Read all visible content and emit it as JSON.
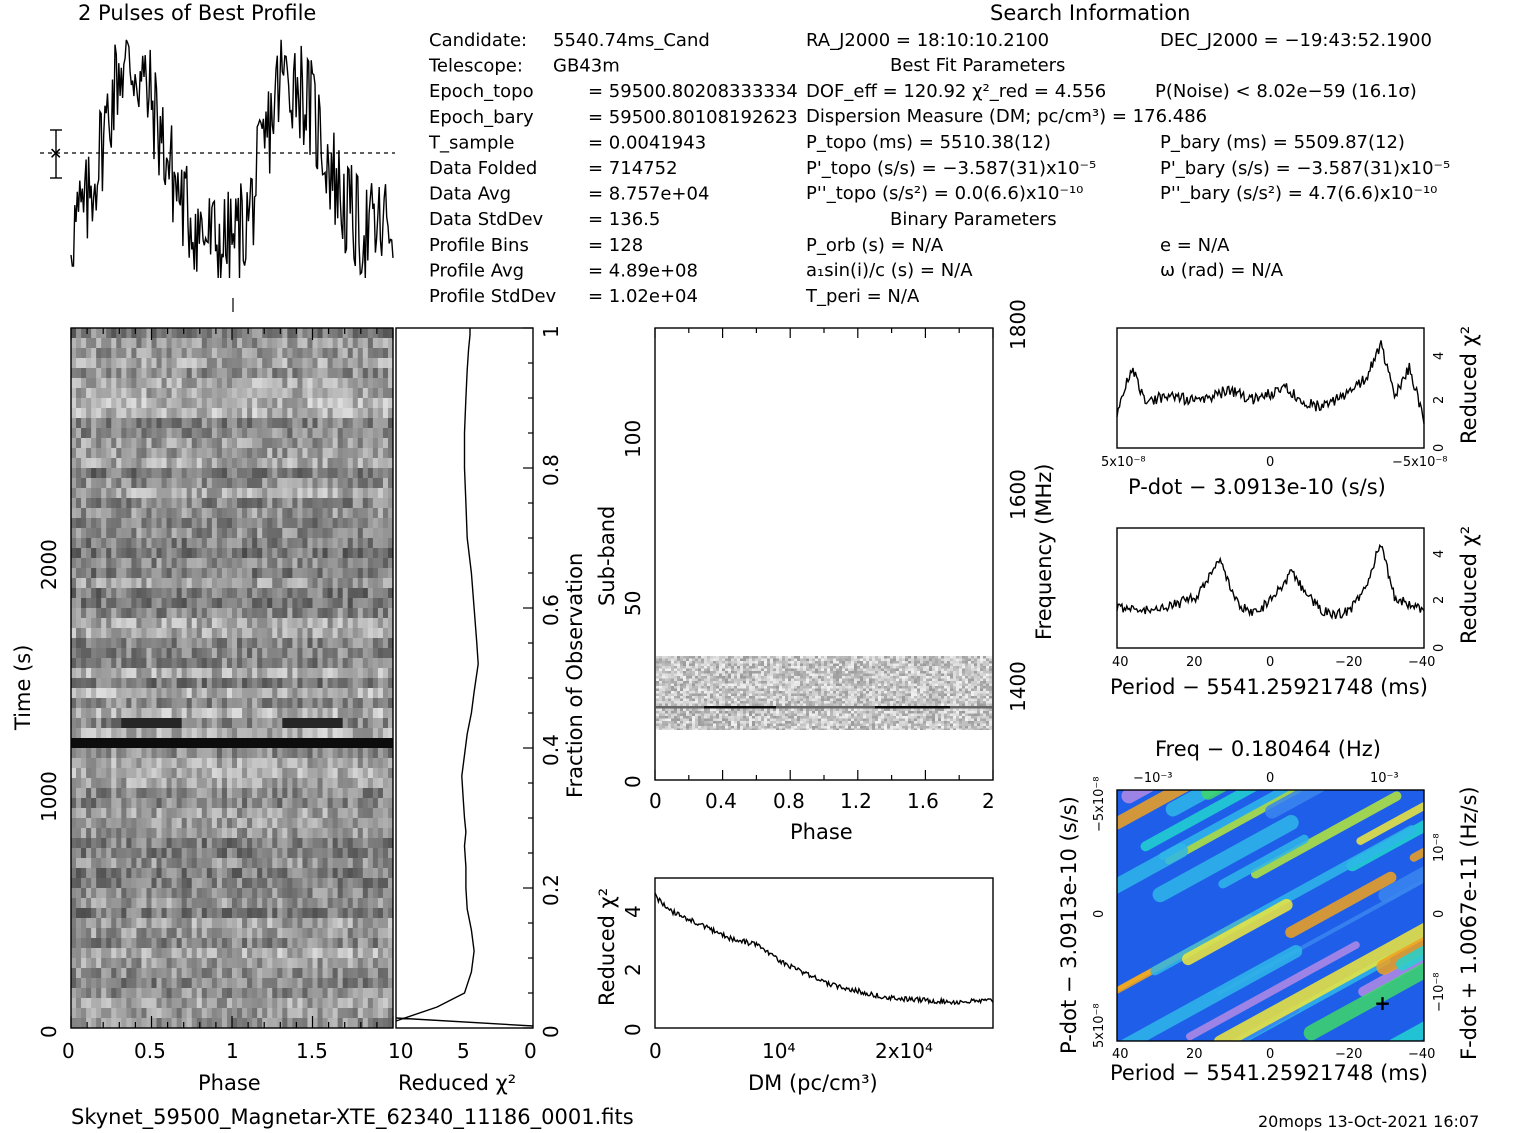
{
  "filename": "Skynet_59500_Magnetar-XTE_62340_11186_0001.fits",
  "footer_right": "20mops 13-Oct-2021 16:07",
  "profile_title": "2 Pulses of Best Profile",
  "search_title": "Search Information",
  "info_left": [
    [
      "Candidate:",
      "5540.74ms_Cand"
    ],
    [
      "Telescope:",
      "GB43m"
    ],
    [
      "Epoch_topo",
      "= 59500.80208333334"
    ],
    [
      "Epoch_bary",
      "= 59500.80108192623"
    ],
    [
      "T_sample",
      "= 0.0041943"
    ],
    [
      "Data Folded",
      "= 714752"
    ],
    [
      "Data Avg",
      "= 8.757e+04"
    ],
    [
      "Data StdDev",
      "= 136.5"
    ],
    [
      "Profile Bins",
      "= 128"
    ],
    [
      "Profile Avg",
      "= 4.89e+08"
    ],
    [
      "Profile StdDev",
      "= 1.02e+04"
    ]
  ],
  "info_mid": {
    "ra": "RA_J2000 = 18:10:10.2100",
    "best_fit_title": "Best Fit Parameters",
    "dof": "DOF_eff = 120.92  χ²_red = 4.556",
    "dm": "Dispersion Measure (DM; pc/cm³) = 176.486",
    "ptopo": "P_topo (ms) =  5510.38(12)",
    "pdtopo": "P'_topo (s/s) = −3.587(31)x10⁻⁵",
    "pddtopo": "P''_topo (s/s²) = 0.0(6.6)x10⁻¹⁰",
    "binary_title": "Binary Parameters",
    "porb": "P_orb (s) = N/A",
    "asini": "a₁sin(i)/c (s) = N/A",
    "tperi": "T_peri = N/A"
  },
  "info_right": {
    "dec": "DEC_J2000 = −19:43:52.1900",
    "pnoise": "P(Noise) < 8.02e−59  (16.1σ)",
    "pbary": "P_bary (ms) =  5509.87(12)",
    "pdbary": "P'_bary (s/s) = −3.587(31)x10⁻⁵",
    "pddbary": "P''_bary (s/s²) =  4.7(6.6)x10⁻¹⁰",
    "ecc": "e = N/A",
    "omega": "ω (rad) = N/A"
  },
  "chart_data": [
    {
      "type": "line",
      "name": "profile",
      "title": "2 Pulses of Best Profile",
      "x": [
        0,
        0.1,
        0.2,
        0.3,
        0.4,
        0.5,
        0.6,
        0.7,
        0.8,
        0.9,
        1.0,
        1.1,
        1.2,
        1.3,
        1.4,
        1.5,
        1.6,
        1.7,
        1.8,
        1.9,
        2.0
      ],
      "y": [
        0.2,
        0.3,
        0.6,
        0.9,
        0.9,
        0.75,
        0.5,
        0.3,
        0.2,
        0.15,
        0.15,
        0.25,
        0.55,
        0.85,
        0.85,
        0.7,
        0.5,
        0.3,
        0.2,
        0.2,
        0.25
      ]
    },
    {
      "type": "heatmap",
      "name": "time-phase",
      "xlabel": "Phase",
      "ylabel": "Time (s)",
      "xticks": [
        "0",
        "0.5",
        "1",
        "1.5"
      ],
      "yticks": [
        "0",
        "1000",
        "2000"
      ],
      "xlim": [
        0,
        2
      ],
      "ylim": [
        0,
        3000
      ],
      "bright_row_times": [
        1200,
        1300
      ]
    },
    {
      "type": "line",
      "name": "time-chi2",
      "xlabel": "Reduced χ²",
      "ylabel": "Fraction of Observation",
      "xticks": [
        "10",
        "5",
        "0"
      ],
      "yticks": [
        "0",
        "0.2",
        "0.4",
        "0.6",
        "0.8",
        "1"
      ],
      "xlim": [
        10,
        0
      ],
      "ylim": [
        0,
        1
      ],
      "x": [
        10,
        7,
        5,
        4.5,
        4.3,
        4.5,
        4.8,
        4.9,
        4.9,
        5.0,
        4.9,
        5.0,
        5.1,
        5.2,
        5.0,
        4.8,
        4.5,
        4.3,
        4.0,
        4.1,
        4.3,
        4.5,
        4.8,
        4.9,
        5.0,
        5.0,
        4.9,
        4.8,
        4.7,
        4.6,
        4.6
      ],
      "y": [
        0.01,
        0.03,
        0.05,
        0.08,
        0.11,
        0.14,
        0.17,
        0.2,
        0.23,
        0.26,
        0.28,
        0.3,
        0.33,
        0.36,
        0.39,
        0.42,
        0.45,
        0.48,
        0.52,
        0.55,
        0.6,
        0.65,
        0.7,
        0.75,
        0.8,
        0.85,
        0.9,
        0.94,
        0.97,
        0.99,
        1.0
      ]
    },
    {
      "type": "heatmap",
      "name": "phase-subband",
      "xlabel": "Phase",
      "ylabel": "Sub-band",
      "y2label": "Frequency (MHz)",
      "xticks": [
        "0",
        "0.4",
        "0.8",
        "1.2",
        "1.6",
        "2"
      ],
      "yticks": [
        "0",
        "50",
        "100"
      ],
      "y2ticks": [
        "1400",
        "1600",
        "1800"
      ],
      "xlim": [
        0,
        2
      ],
      "ylim": [
        0,
        128
      ],
      "data_band": [
        15,
        35
      ]
    },
    {
      "type": "line",
      "name": "dm-chi2",
      "xlabel": "DM (pc/cm³)",
      "ylabel": "Reduced χ²",
      "xticks": [
        "0",
        "10⁴",
        "2x10⁴"
      ],
      "yticks": [
        "0",
        "2",
        "4"
      ],
      "xlim": [
        0,
        27000
      ],
      "ylim": [
        0,
        5.2
      ],
      "x": [
        0,
        1000,
        2000,
        4000,
        6000,
        8000,
        10000,
        12000,
        14000,
        16000,
        18000,
        20000,
        22000,
        24000,
        27000
      ],
      "y": [
        4.6,
        4.1,
        3.9,
        3.5,
        3.1,
        2.9,
        2.3,
        1.9,
        1.5,
        1.3,
        1.1,
        1.0,
        0.95,
        0.9,
        0.95
      ]
    },
    {
      "type": "line",
      "name": "pdot-chi2",
      "xlabel": "P-dot − 3.0913e-10 (s/s)",
      "ylabel": "Reduced χ²",
      "xticks": [
        "5x10⁻⁸",
        "0",
        "−5x10⁻⁸"
      ],
      "yticks": [
        "0",
        "2",
        "4"
      ],
      "xlim": [
        5.3e-08,
        -5.3e-08
      ],
      "ylim": [
        0,
        5.2
      ],
      "x": [
        5.3e-08,
        4.8e-08,
        4.3e-08,
        3.5e-08,
        2.5e-08,
        1.5e-08,
        5e-09,
        -5e-09,
        -1.5e-08,
        -2.5e-08,
        -3.3e-08,
        -3.8e-08,
        -4.3e-08,
        -4.8e-08,
        -5.3e-08
      ],
      "y": [
        1.5,
        3.5,
        2.0,
        2.3,
        2.0,
        2.5,
        2.1,
        2.6,
        1.8,
        2.2,
        3.0,
        4.5,
        2.2,
        3.5,
        1.2
      ]
    },
    {
      "type": "line",
      "name": "period-chi2",
      "xlabel": "Period − 5541.25921748 (ms)",
      "ylabel": "Reduced χ²",
      "xticks": [
        "40",
        "20",
        "0",
        "−20",
        "−40"
      ],
      "yticks": [
        "0",
        "2",
        "4"
      ],
      "xlim": [
        42,
        -42
      ],
      "ylim": [
        0,
        5.2
      ],
      "x": [
        42,
        35,
        28,
        20,
        14,
        10,
        6,
        2,
        -2,
        -6,
        -10,
        -14,
        -18,
        -22,
        -26,
        -30,
        -34,
        -38,
        -42
      ],
      "y": [
        1.7,
        1.6,
        1.8,
        2.2,
        3.8,
        2.2,
        1.5,
        1.8,
        2.5,
        3.3,
        2.3,
        1.6,
        1.4,
        1.7,
        2.6,
        4.5,
        2.2,
        1.9,
        1.6
      ]
    },
    {
      "type": "heatmap",
      "name": "period-pdot",
      "title": "Freq − 0.180464 (Hz)",
      "xlabel": "Period − 5541.25921748 (ms)",
      "ylabel": "P-dot − 3.0913e-10 (s/s)",
      "y2label": "F-dot + 1.0067e-11 (Hz/s)",
      "xticks": [
        "40",
        "20",
        "0",
        "−20",
        "−40"
      ],
      "x2ticks": [
        "−10⁻³",
        "0",
        "10⁻³"
      ],
      "yticks": [
        "5x10⁻⁸",
        "0",
        "−5x10⁻⁸"
      ],
      "y2ticks": [
        "−10⁻⁸",
        "0",
        "10⁻⁸"
      ],
      "xlim": [
        42,
        -42
      ],
      "ylim": [
        5.3e-08,
        -5.3e-08
      ],
      "best": {
        "x": -30,
        "y": -3.7e-08
      }
    }
  ]
}
